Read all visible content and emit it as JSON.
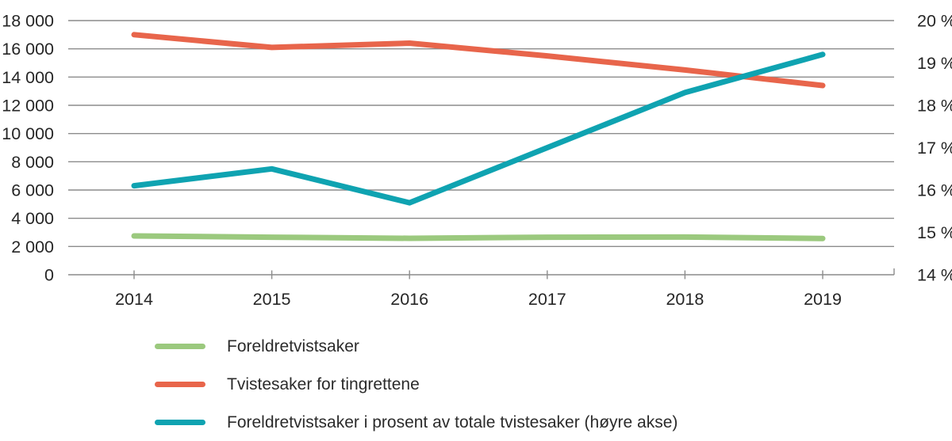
{
  "chart_data": {
    "type": "line",
    "title": "",
    "x_categories": [
      "2014",
      "2015",
      "2016",
      "2017",
      "2018",
      "2019"
    ],
    "series": [
      {
        "name": "Foreldretvistsaker",
        "axis": "left",
        "color": "#9bc97e",
        "values": [
          2750,
          2660,
          2580,
          2660,
          2670,
          2570
        ]
      },
      {
        "name": "Tvistesaker for tingrettene",
        "axis": "left",
        "color": "#e8654b",
        "values": [
          17000,
          16100,
          16400,
          15500,
          14500,
          13400
        ]
      },
      {
        "name": "Foreldretvistsaker i prosent av totale tvistesaker (høyre akse)",
        "axis": "right",
        "color": "#0fa3b1",
        "values": [
          16.1,
          16.5,
          15.7,
          17.0,
          18.3,
          19.2
        ]
      }
    ],
    "left_axis": {
      "min": 0,
      "max": 18000,
      "step": 2000,
      "tick_labels": [
        "0",
        "2 000",
        "4 000",
        "6 000",
        "8 000",
        "10 000",
        "12 000",
        "14 000",
        "16 000",
        "18 000"
      ]
    },
    "right_axis": {
      "min": 14,
      "max": 20,
      "step": 1,
      "unit": "%",
      "tick_labels": [
        "14 %",
        "15 %",
        "16 %",
        "17 %",
        "18 %",
        "19 %",
        "20 %"
      ]
    },
    "grid": true,
    "legend_position": "bottom-left",
    "style": {
      "grid_color": "#8c8c8c",
      "axis_color": "#8c8c8c",
      "text_color": "#262626",
      "line_width": 7
    }
  },
  "legend": {
    "items": [
      {
        "label": "Foreldretvistsaker",
        "color": "#9bc97e"
      },
      {
        "label": "Tvistesaker for tingrettene",
        "color": "#e8654b"
      },
      {
        "label": "Foreldretvistsaker i prosent av totale tvistesaker (høyre akse)",
        "color": "#0fa3b1"
      }
    ]
  }
}
